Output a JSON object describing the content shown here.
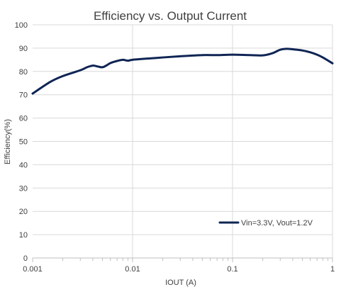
{
  "chart_data": {
    "type": "line",
    "title": "Efficiency vs. Output Current",
    "xlabel": "IOUT (A)",
    "ylabel": "Efficiency(%)",
    "x_scale": "log",
    "xlim": [
      0.001,
      1
    ],
    "ylim": [
      0,
      100
    ],
    "x_ticks": [
      0.001,
      0.01,
      0.1,
      1
    ],
    "x_tick_labels": [
      "0.001",
      "0.01",
      "0.1",
      "1"
    ],
    "y_ticks": [
      0,
      10,
      20,
      30,
      40,
      50,
      60,
      70,
      80,
      90,
      100
    ],
    "y_tick_labels": [
      "0",
      "10",
      "20",
      "30",
      "40",
      "50",
      "60",
      "70",
      "80",
      "90",
      "100"
    ],
    "grid": true,
    "legend_position": "bottom-right",
    "series": [
      {
        "name": "Vin=3.3V, Vout=1.2V",
        "color": "#0f2554",
        "x": [
          0.001,
          0.0015,
          0.002,
          0.003,
          0.0035,
          0.004,
          0.0045,
          0.005,
          0.0055,
          0.006,
          0.007,
          0.008,
          0.009,
          0.01,
          0.015,
          0.02,
          0.03,
          0.05,
          0.07,
          0.1,
          0.15,
          0.2,
          0.25,
          0.3,
          0.35,
          0.4,
          0.5,
          0.6,
          0.7,
          0.8,
          1.0
        ],
        "y": [
          70.5,
          75.5,
          78,
          80.5,
          81.8,
          82.5,
          82.1,
          81.8,
          82.6,
          83.6,
          84.5,
          85,
          84.6,
          85,
          85.6,
          86,
          86.5,
          87,
          87,
          87.2,
          87,
          86.9,
          87.8,
          89.3,
          89.7,
          89.5,
          89,
          88.2,
          87.2,
          86,
          83.5
        ]
      }
    ]
  }
}
